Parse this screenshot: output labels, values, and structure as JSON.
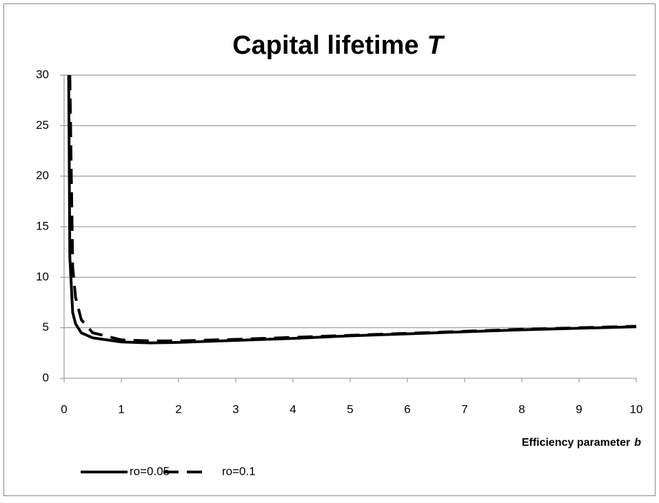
{
  "chart_data": {
    "type": "line",
    "title": {
      "text": "Capital lifetime",
      "emphasis": "T"
    },
    "x_label": {
      "text": "Efficiency parameter",
      "emphasis": "b"
    },
    "x": [
      0.08,
      0.1,
      0.15,
      0.2,
      0.3,
      0.5,
      1,
      1.5,
      2,
      3,
      4,
      5,
      6,
      7,
      8,
      9,
      10
    ],
    "series": [
      {
        "name": "ro=0.05",
        "color": "#000000",
        "dash": false,
        "values": [
          30,
          12,
          6.5,
          5.4,
          4.5,
          4.0,
          3.6,
          3.5,
          3.55,
          3.75,
          3.95,
          4.2,
          4.4,
          4.6,
          4.8,
          4.95,
          5.1
        ]
      },
      {
        "name": "ro=0.1",
        "color": "#000000",
        "dash": true,
        "values": [
          null,
          30,
          11,
          8,
          5.8,
          4.5,
          3.8,
          3.7,
          3.7,
          3.85,
          4.05,
          4.25,
          4.45,
          4.65,
          4.85,
          5.0,
          5.15
        ]
      }
    ],
    "xlim": [
      0,
      10
    ],
    "xticks": [
      0,
      1,
      2,
      3,
      4,
      5,
      6,
      7,
      8,
      9,
      10
    ],
    "ylim": [
      0,
      30
    ],
    "yticks": [
      0,
      5,
      10,
      15,
      20,
      25,
      30
    ],
    "grid": true,
    "legend": "bottom"
  }
}
